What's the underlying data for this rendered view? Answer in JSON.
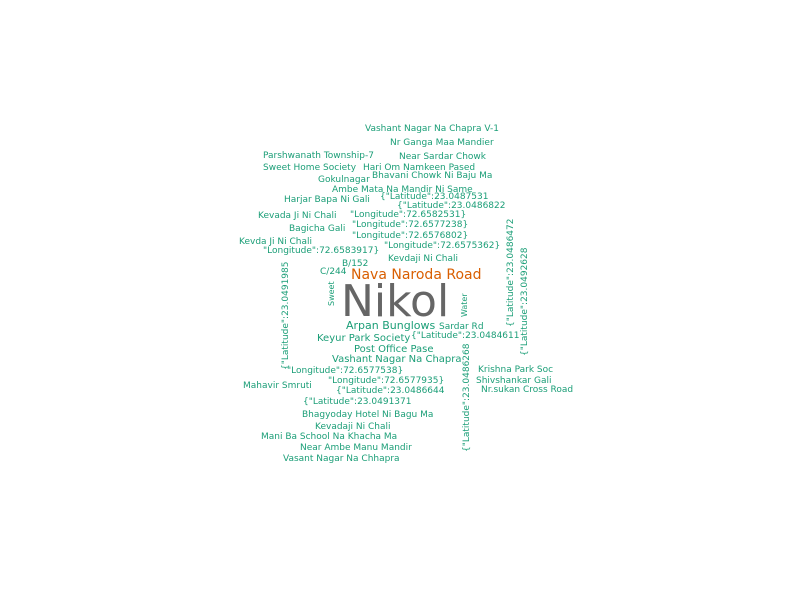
{
  "colors": {
    "small": "#1b9e77",
    "main": "#666666",
    "second": "#d95f02"
  },
  "words": [
    "Vashant Nagar Na Chapra V-1",
    "Nr Ganga Maa Mandier",
    "Parshwanath Township-7",
    "Near Sardar Chowk",
    "Sweet Home Society",
    "Hari Om Namkeen Pased",
    "Gokulnagar",
    "Bhavani Chowk Ni Baju Ma",
    "Ambe Mata Na Mandir Ni Same",
    "Harjar Bapa Ni Gali",
    "{\"Latitude\":23.0487531",
    "{\"Latitude\":23.0486822",
    "Kevada Ji Ni Chali",
    "\"Longitude\":72.6582531}",
    "Bagicha Gali",
    "\"Longitude\":72.6577238}",
    "\"Longitude\":72.6576802}",
    "Kevda Ji Ni Chali",
    "\"Longitude\":72.6575362}",
    "\"Longitude\":72.6583917}",
    "Kevdaji Ni Chali",
    "B/152",
    "Nava Naroda Road",
    "C/244",
    "Sweet",
    "Nikol",
    "Water",
    "Arpan Bunglows",
    "Sardar Rd",
    "Keyur Park Society",
    "{\"Latitude\":23.0484611",
    "Post Office Pase",
    "Vashant Nagar Na Chapra",
    "Krishna Park Soc",
    "\"Longitude\":72.6577538}",
    "Shivshankar Gali",
    "\"Longitude\":72.6577935}",
    "Mahavir Smruti",
    "Nr.sukan Cross Road",
    "{\"Latitude\":23.0486644",
    "{\"Latitude\":23.0491371",
    "Bhagyoday Hotel Ni Bagu Ma",
    "Kevadaji Ni Chali",
    "Mani Ba School Na Khacha Ma",
    "Near Ambe Manu Mandir",
    "Vasant Nagar Na Chhapra",
    "{\"Latitude\":23.0491985",
    "{\"Latitude\":23.0486472",
    "{\"Latitude\":23.0492628",
    "{\"Latitude\":23.0486268"
  ]
}
